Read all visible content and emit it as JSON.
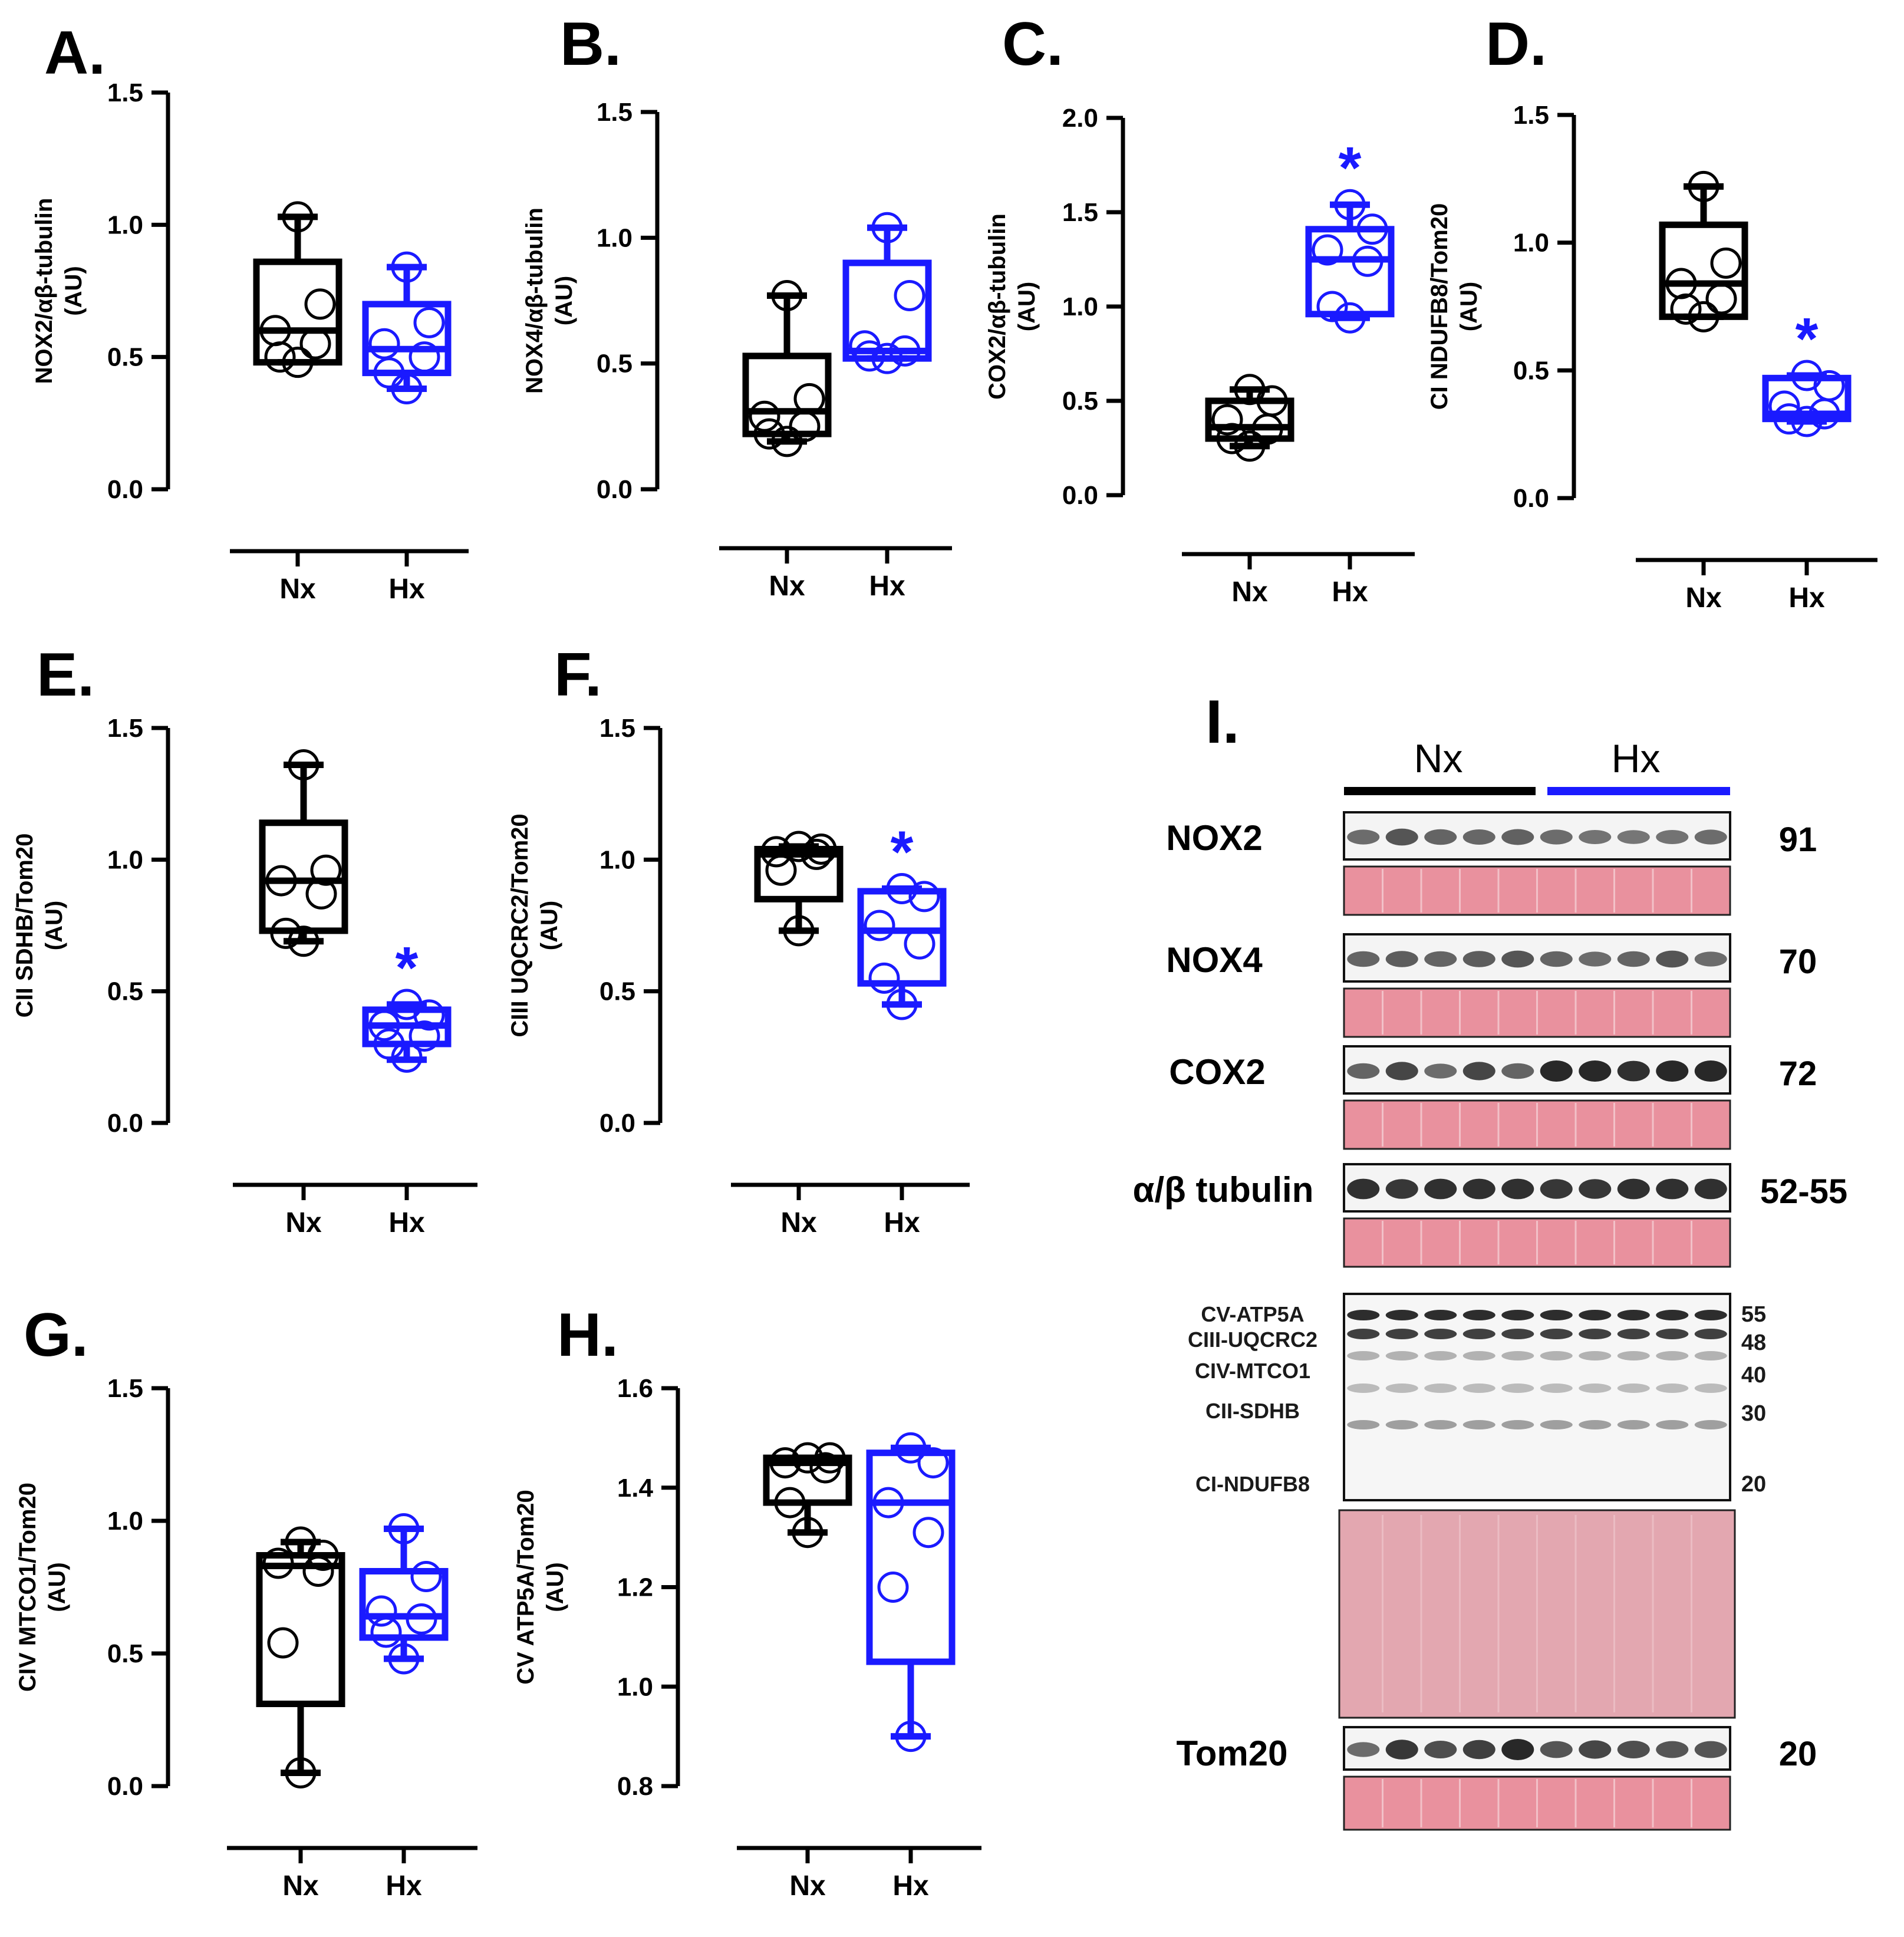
{
  "colors": {
    "nx": "#000000",
    "hx": "#1a1aff",
    "ponceau": "#e9919e",
    "ponceau_light": "#e3a7b0"
  },
  "chart_data": [
    {
      "type": "box",
      "panel": "A.",
      "ylabel_lines": [
        "NOX2/αβ-tubulin",
        "(AU)"
      ],
      "ylim": [
        0,
        1.5
      ],
      "yticks": [
        "0.0",
        "0.5",
        "1.0",
        "1.5"
      ],
      "categories": [
        "Nx",
        "Hx"
      ],
      "series": [
        {
          "name": "Nx",
          "min": 0.48,
          "q1": 0.48,
          "median": 0.6,
          "q3": 0.86,
          "max": 1.03,
          "points": [
            1.03,
            0.7,
            0.6,
            0.55,
            0.5,
            0.48
          ]
        },
        {
          "name": "Hx",
          "min": 0.38,
          "q1": 0.44,
          "median": 0.53,
          "q3": 0.7,
          "max": 0.84,
          "points": [
            0.84,
            0.63,
            0.55,
            0.5,
            0.44,
            0.38
          ]
        }
      ],
      "significant": [
        false,
        false
      ]
    },
    {
      "type": "box",
      "panel": "B.",
      "ylabel_lines": [
        "NOX4/αβ-tubulin",
        "(AU)"
      ],
      "ylim": [
        0,
        1.5
      ],
      "yticks": [
        "0.0",
        "0.5",
        "1.0",
        "1.5"
      ],
      "categories": [
        "Nx",
        "Hx"
      ],
      "series": [
        {
          "name": "Nx",
          "min": 0.19,
          "q1": 0.22,
          "median": 0.31,
          "q3": 0.53,
          "max": 0.77,
          "points": [
            0.77,
            0.36,
            0.29,
            0.25,
            0.22,
            0.19
          ]
        },
        {
          "name": "Hx",
          "min": 0.52,
          "q1": 0.52,
          "median": 0.55,
          "q3": 0.9,
          "max": 1.04,
          "points": [
            1.04,
            0.77,
            0.57,
            0.55,
            0.53,
            0.52
          ]
        }
      ],
      "significant": [
        false,
        false
      ]
    },
    {
      "type": "box",
      "panel": "C.",
      "ylabel_lines": [
        "COX2/αβ-tubulin",
        "(AU)"
      ],
      "ylim": [
        0,
        2.0
      ],
      "yticks": [
        "0.0",
        "0.5",
        "1.0",
        "1.5",
        "2.0"
      ],
      "categories": [
        "Nx",
        "Hx"
      ],
      "series": [
        {
          "name": "Nx",
          "min": 0.26,
          "q1": 0.3,
          "median": 0.36,
          "q3": 0.5,
          "max": 0.56,
          "points": [
            0.56,
            0.5,
            0.4,
            0.35,
            0.3,
            0.26
          ]
        },
        {
          "name": "Hx",
          "min": 0.94,
          "q1": 0.96,
          "median": 1.25,
          "q3": 1.41,
          "max": 1.54,
          "points": [
            1.54,
            1.41,
            1.3,
            1.24,
            1.0,
            0.94
          ]
        }
      ],
      "significant": [
        false,
        true
      ]
    },
    {
      "type": "box",
      "panel": "D.",
      "ylabel_lines": [
        "CI NDUFB8/Tom20",
        "(AU)"
      ],
      "ylim": [
        0,
        1.5
      ],
      "yticks": [
        "0.0",
        "0.5",
        "1.0",
        "1.5"
      ],
      "categories": [
        "Nx",
        "Hx"
      ],
      "series": [
        {
          "name": "Nx",
          "min": 0.71,
          "q1": 0.71,
          "median": 0.84,
          "q3": 1.07,
          "max": 1.22,
          "points": [
            1.22,
            0.92,
            0.84,
            0.78,
            0.74,
            0.71
          ]
        },
        {
          "name": "Hx",
          "min": 0.3,
          "q1": 0.31,
          "median": 0.33,
          "q3": 0.47,
          "max": 0.48,
          "points": [
            0.48,
            0.44,
            0.36,
            0.33,
            0.31,
            0.3
          ]
        }
      ],
      "significant": [
        false,
        true
      ]
    },
    {
      "type": "box",
      "panel": "E.",
      "ylabel_lines": [
        "CII SDHB/Tom20",
        "(AU)"
      ],
      "ylim": [
        0,
        1.5
      ],
      "yticks": [
        "0.0",
        "0.5",
        "1.0",
        "1.5"
      ],
      "categories": [
        "Nx",
        "Hx"
      ],
      "series": [
        {
          "name": "Nx",
          "min": 0.69,
          "q1": 0.73,
          "median": 0.92,
          "q3": 1.14,
          "max": 1.36,
          "points": [
            1.36,
            0.96,
            0.92,
            0.87,
            0.72,
            0.69
          ]
        },
        {
          "name": "Hx",
          "min": 0.24,
          "q1": 0.3,
          "median": 0.37,
          "q3": 0.43,
          "max": 0.45,
          "points": [
            0.45,
            0.41,
            0.37,
            0.33,
            0.3,
            0.25
          ]
        }
      ],
      "significant": [
        false,
        true
      ]
    },
    {
      "type": "box",
      "panel": "F.",
      "ylabel_lines": [
        "CIII UQCRC2/Tom20",
        "(AU)"
      ],
      "ylim": [
        0,
        1.5
      ],
      "yticks": [
        "0.0",
        "0.5",
        "1.0",
        "1.5"
      ],
      "categories": [
        "Nx",
        "Hx"
      ],
      "series": [
        {
          "name": "Nx",
          "min": 0.73,
          "q1": 0.85,
          "median": 1.02,
          "q3": 1.04,
          "max": 1.05,
          "points": [
            1.05,
            1.04,
            1.03,
            1.02,
            0.96,
            0.73
          ]
        },
        {
          "name": "Hx",
          "min": 0.45,
          "q1": 0.53,
          "median": 0.73,
          "q3": 0.88,
          "max": 0.89,
          "points": [
            0.89,
            0.86,
            0.75,
            0.68,
            0.55,
            0.45
          ]
        }
      ],
      "significant": [
        false,
        true
      ]
    },
    {
      "type": "box",
      "panel": "G.",
      "ylabel_lines": [
        "CIV MTCO1/Tom20",
        "(AU)"
      ],
      "ylim": [
        0,
        1.5
      ],
      "yticks": [
        "0.0",
        "0.5",
        "1.0",
        "1.5"
      ],
      "categories": [
        "Nx",
        "Hx"
      ],
      "series": [
        {
          "name": "Nx",
          "min": 0.05,
          "q1": 0.31,
          "median": 0.83,
          "q3": 0.87,
          "max": 0.92,
          "points": [
            0.92,
            0.87,
            0.84,
            0.81,
            0.54,
            0.05
          ]
        },
        {
          "name": "Hx",
          "min": 0.48,
          "q1": 0.56,
          "median": 0.64,
          "q3": 0.81,
          "max": 0.97,
          "points": [
            0.97,
            0.79,
            0.66,
            0.63,
            0.58,
            0.48
          ]
        }
      ],
      "significant": [
        false,
        false
      ]
    },
    {
      "type": "box",
      "panel": "H.",
      "ylabel_lines": [
        "CV ATP5A/Tom20",
        "(AU)"
      ],
      "ylim": [
        0.8,
        1.6
      ],
      "yticks": [
        "0.8",
        "1.0",
        "1.2",
        "1.4",
        "1.6"
      ],
      "categories": [
        "Nx",
        "Hx"
      ],
      "series": [
        {
          "name": "Nx",
          "min": 1.31,
          "q1": 1.37,
          "median": 1.45,
          "q3": 1.46,
          "max": 1.46,
          "points": [
            1.46,
            1.46,
            1.45,
            1.44,
            1.37,
            1.31
          ]
        },
        {
          "name": "Hx",
          "min": 0.9,
          "q1": 1.05,
          "median": 1.37,
          "q3": 1.47,
          "max": 1.48,
          "points": [
            1.48,
            1.45,
            1.37,
            1.31,
            1.2,
            0.9
          ]
        }
      ],
      "significant": [
        false,
        false
      ]
    }
  ],
  "significance_symbol": "*",
  "blot": {
    "panel": "I.",
    "groups": [
      "Nx",
      "Hx"
    ],
    "lanes_per_group": 5,
    "rows": [
      {
        "label": "NOX2",
        "size": "91",
        "intensity": [
          0.55,
          0.7,
          0.6,
          0.58,
          0.62,
          0.55,
          0.5,
          0.48,
          0.5,
          0.55
        ]
      },
      {
        "label": "NOX4",
        "size": "70",
        "intensity": [
          0.6,
          0.65,
          0.6,
          0.65,
          0.7,
          0.6,
          0.55,
          0.6,
          0.7,
          0.55
        ]
      },
      {
        "label": "COX2",
        "size": "72",
        "intensity": [
          0.6,
          0.8,
          0.55,
          0.8,
          0.6,
          1.0,
          1.0,
          0.95,
          1.0,
          1.0
        ]
      },
      {
        "label": "α/β tubulin",
        "size": "52-55",
        "intensity": [
          0.95,
          0.9,
          0.95,
          0.95,
          0.95,
          0.9,
          0.9,
          0.95,
          0.95,
          0.95
        ]
      }
    ],
    "oxphos": [
      {
        "label": "CV-ATP5A",
        "size": "55"
      },
      {
        "label": "CIII-UQCRC2",
        "size": "48"
      },
      {
        "label": "CIV-MTCO1",
        "size": "40"
      },
      {
        "label": "CII-SDHB",
        "size": "30"
      },
      {
        "label": "CI-NDUFB8",
        "size": "20"
      }
    ],
    "tom20": {
      "label": "Tom20",
      "size": "20",
      "intensity": [
        0.55,
        0.9,
        0.75,
        0.85,
        1.0,
        0.7,
        0.8,
        0.75,
        0.7,
        0.7
      ]
    }
  }
}
